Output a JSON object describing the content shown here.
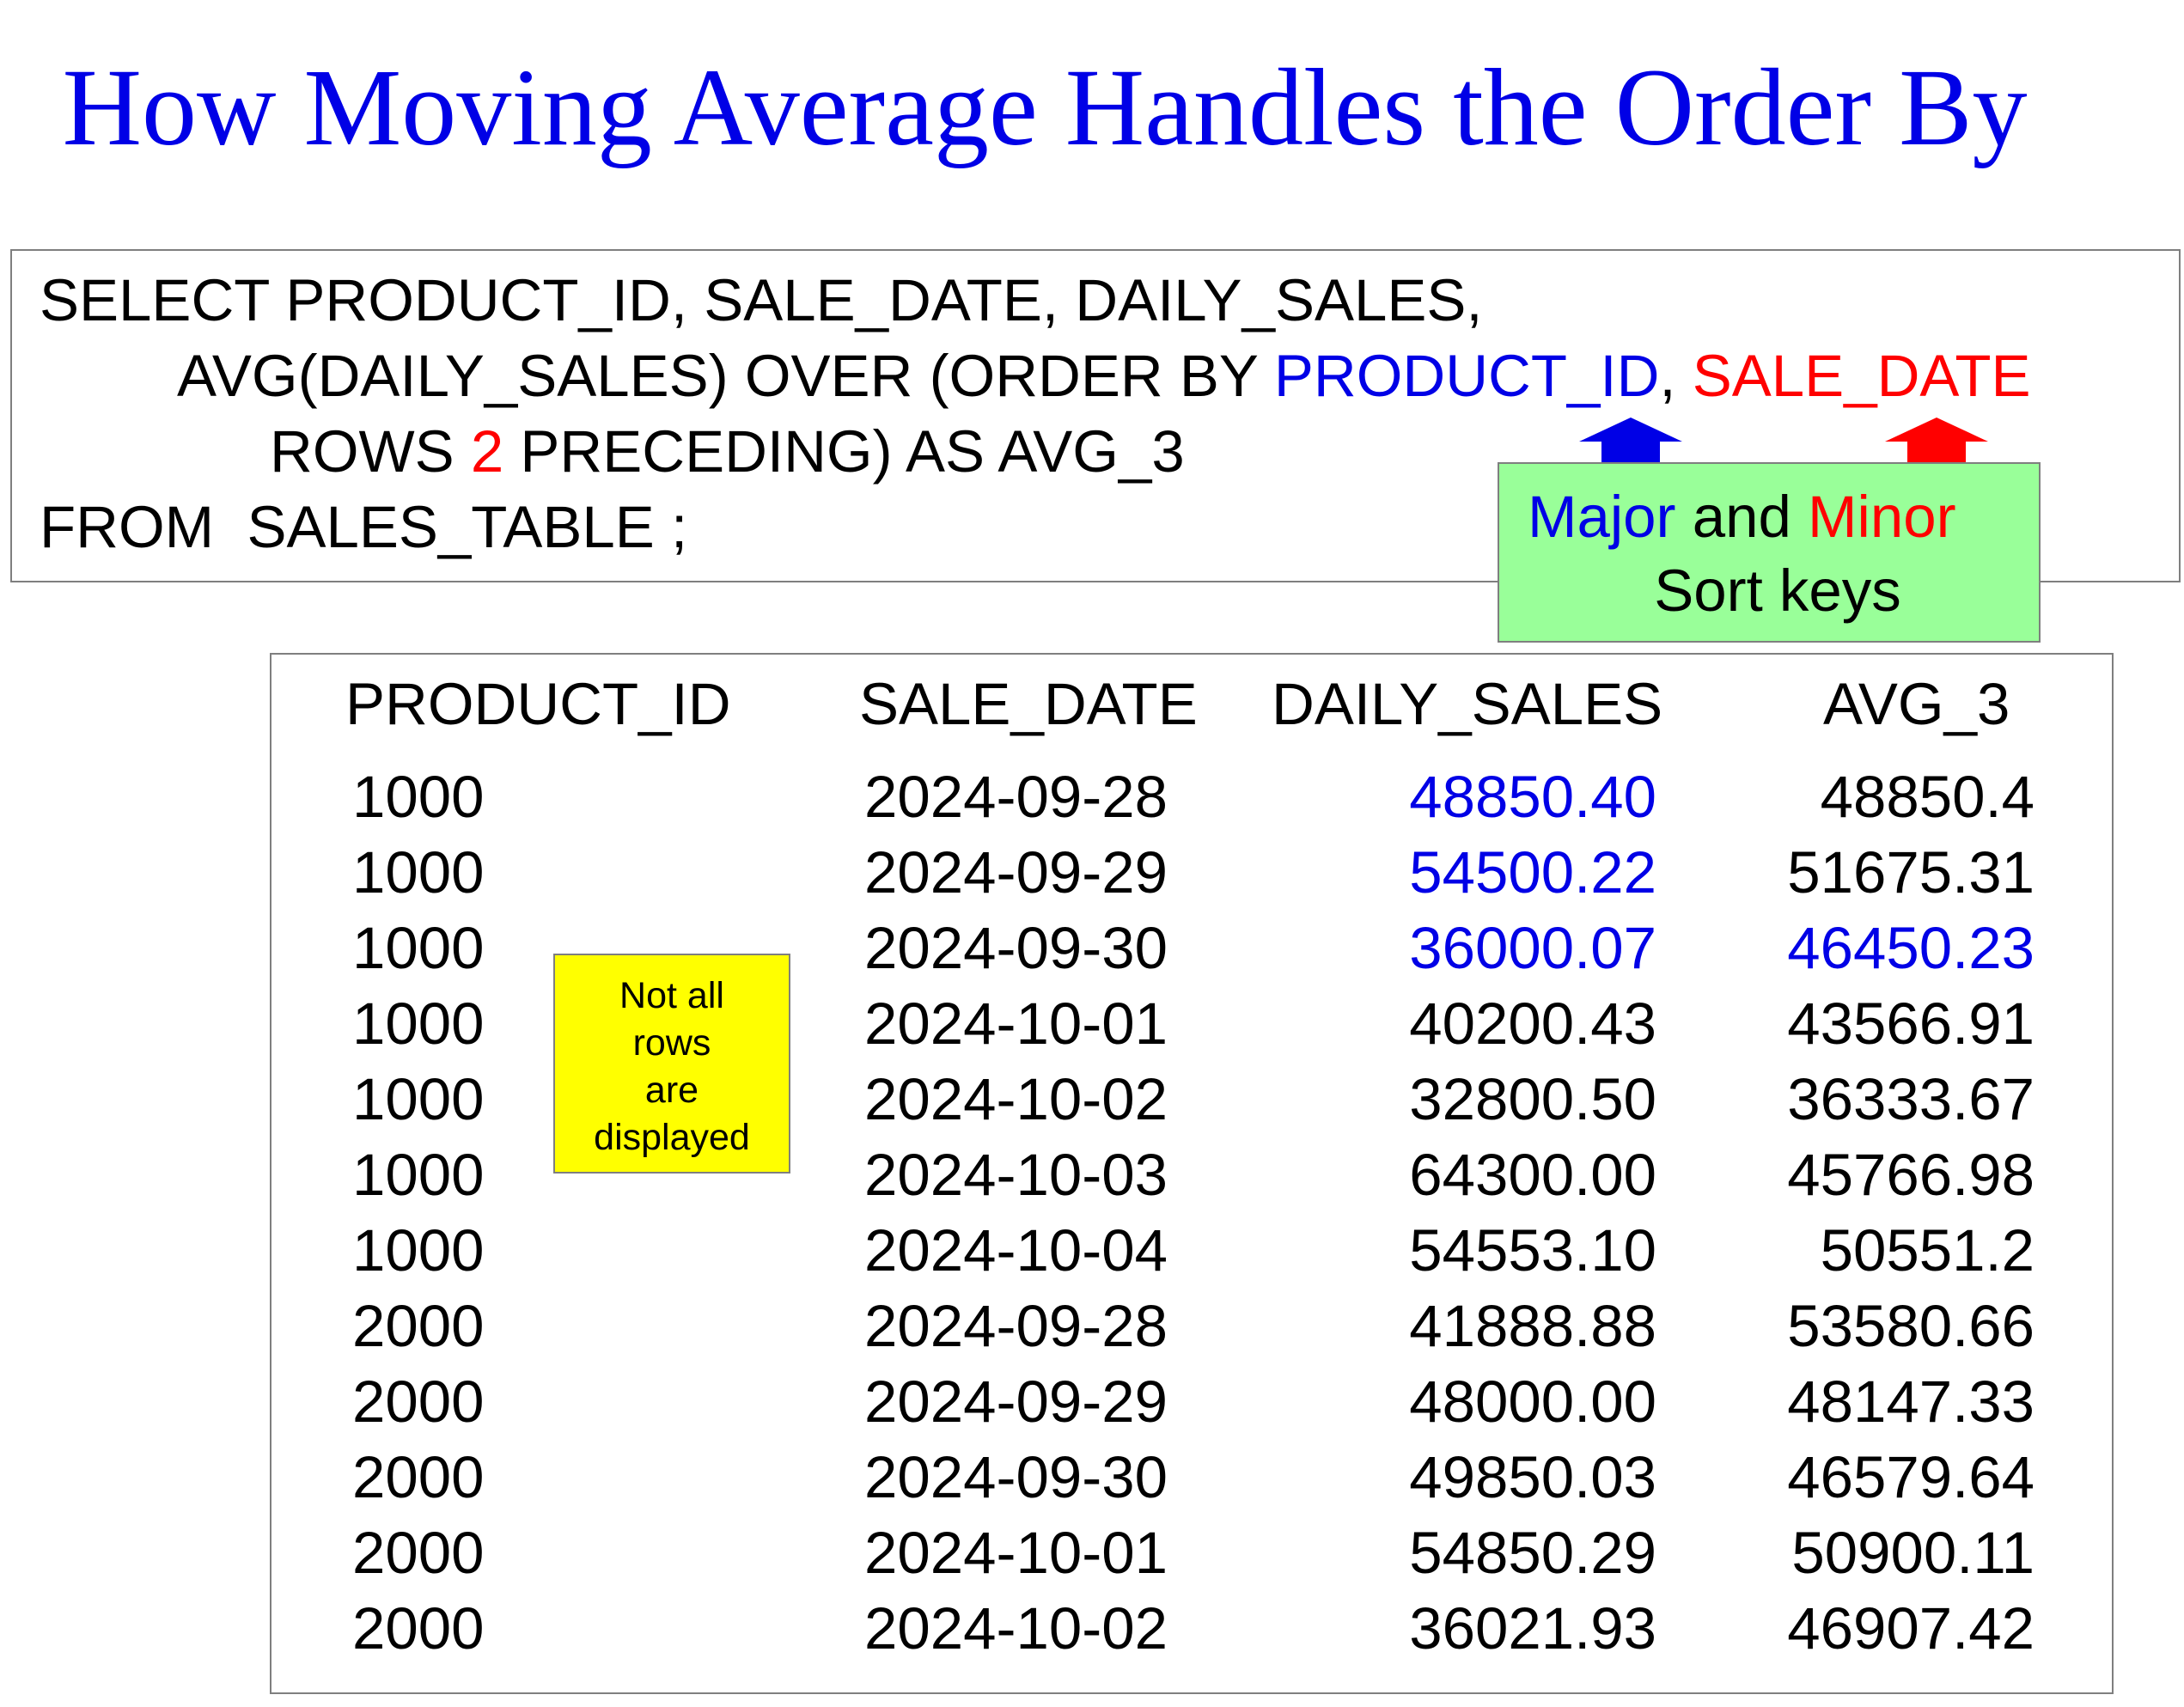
{
  "title": "How Moving Average Handles the Order By",
  "sql": {
    "line1": "SELECT PRODUCT_ID, SALE_DATE, DAILY_SALES,",
    "line2_pre": "AVG(DAILY_SALES) OVER (ORDER BY ",
    "line2_major": "PRODUCT_ID",
    "line2_comma": ", ",
    "line2_minor": "SALE_DATE",
    "line3_pre": "ROWS ",
    "line3_num": "2",
    "line3_post": " PRECEDING) AS AVG_3",
    "line4": "FROM  SALES_TABLE ;"
  },
  "sort_keys_callout": {
    "major": "Major",
    "and": " and ",
    "minor": "Minor",
    "line2": "Sort keys"
  },
  "note": "Not all\nrows\nare\ndisplayed",
  "table": {
    "headers": [
      "PRODUCT_ID",
      "SALE_DATE",
      "DAILY_SALES",
      "AVG_3"
    ],
    "rows": [
      [
        "1000",
        "2024-09-28",
        "48850.40",
        "48850.4"
      ],
      [
        "1000",
        "2024-09-29",
        "54500.22",
        "51675.31"
      ],
      [
        "1000",
        "2024-09-30",
        "36000.07",
        "46450.23"
      ],
      [
        "1000",
        "2024-10-01",
        "40200.43",
        "43566.91"
      ],
      [
        "1000",
        "2024-10-02",
        "32800.50",
        "36333.67"
      ],
      [
        "1000",
        "2024-10-03",
        "64300.00",
        "45766.98"
      ],
      [
        "1000",
        "2024-10-04",
        "54553.10",
        "50551.2"
      ],
      [
        "2000",
        "2024-09-28",
        "41888.88",
        "53580.66"
      ],
      [
        "2000",
        "2024-09-29",
        "48000.00",
        "48147.33"
      ],
      [
        "2000",
        "2024-09-30",
        "49850.03",
        "46579.64"
      ],
      [
        "2000",
        "2024-10-01",
        "54850.29",
        "50900.11"
      ],
      [
        "2000",
        "2024-10-02",
        "36021.93",
        "46907.42"
      ]
    ]
  },
  "colors": {
    "title": "#0000e6",
    "major_key": "#0000e6",
    "minor_key": "#ff0000",
    "callout_bg": "#99ff99",
    "note_bg": "#ffff00",
    "highlight_values": "#0000e6"
  }
}
